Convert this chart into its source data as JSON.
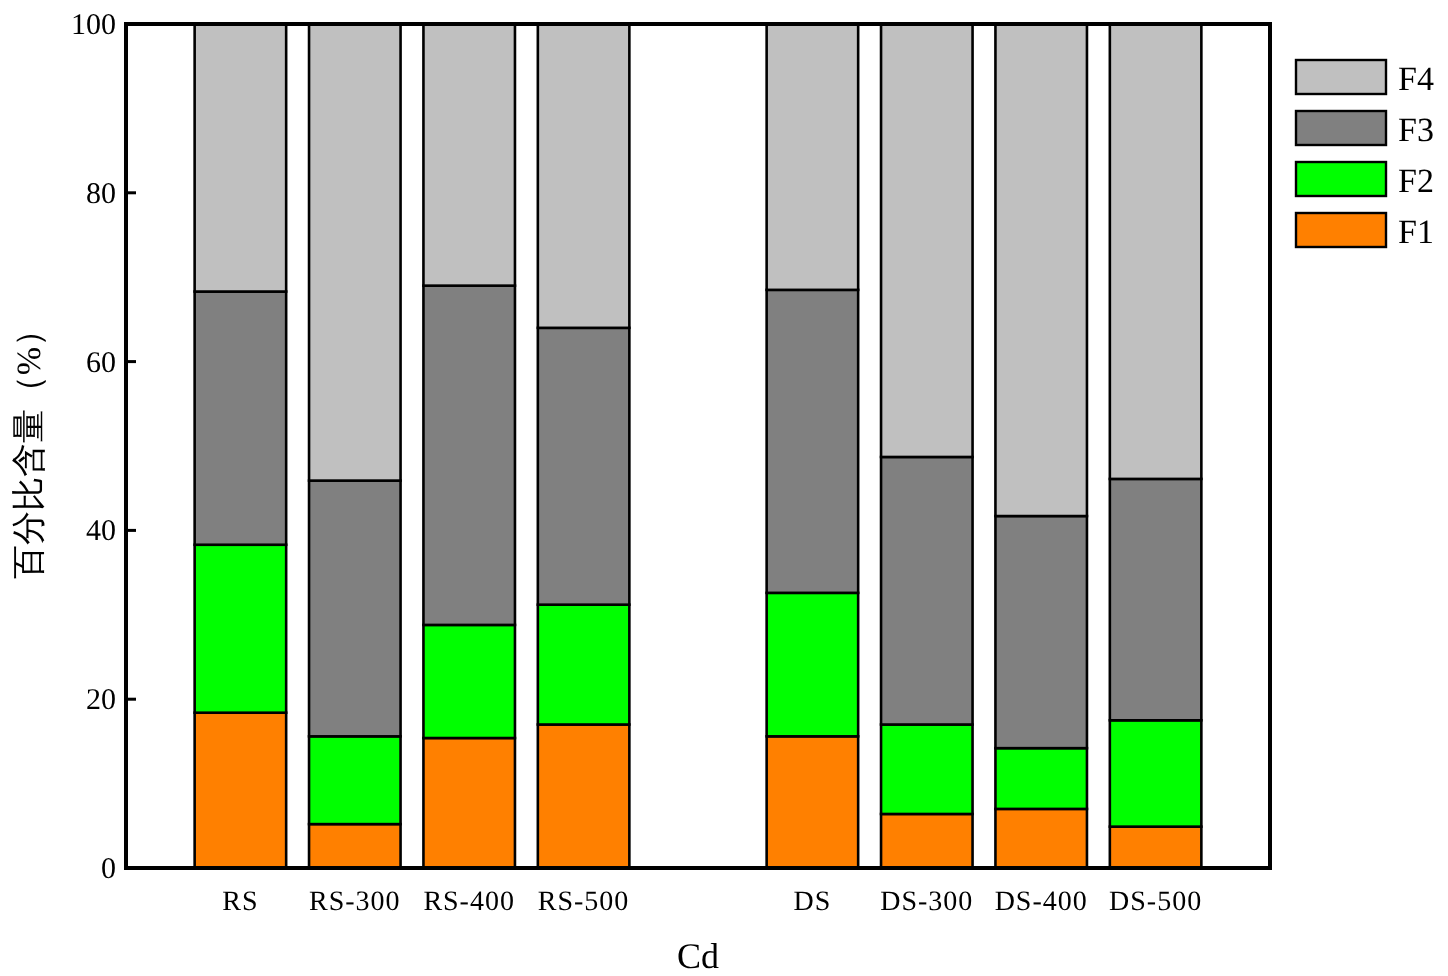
{
  "chart_data": {
    "type": "bar",
    "stacked": true,
    "xlabel": "Cd",
    "ylabel": "百分比含量（%）",
    "categories": [
      "RS",
      "RS-300",
      "RS-400",
      "RS-500",
      null,
      "DS",
      "DS-300",
      "DS-400",
      "DS-500"
    ],
    "series": [
      {
        "name": "F1",
        "color": "#ff8000",
        "values": [
          18.4,
          5.2,
          15.4,
          17.0,
          null,
          15.6,
          6.4,
          7.0,
          4.9
        ]
      },
      {
        "name": "F2",
        "color": "#00ff00",
        "values": [
          19.9,
          10.4,
          13.4,
          14.2,
          null,
          17.0,
          10.6,
          7.2,
          12.6
        ]
      },
      {
        "name": "F3",
        "color": "#808080",
        "values": [
          30.0,
          30.3,
          40.2,
          32.8,
          null,
          35.9,
          31.7,
          27.5,
          28.6
        ]
      },
      {
        "name": "F4",
        "color": "#c0c0c0",
        "values": [
          31.7,
          54.1,
          31.0,
          36.0,
          null,
          31.5,
          51.3,
          58.3,
          53.9
        ]
      }
    ],
    "ylim": [
      0,
      100
    ],
    "yticks": [
      0,
      20,
      40,
      60,
      80,
      100
    ],
    "legend": "top right"
  }
}
